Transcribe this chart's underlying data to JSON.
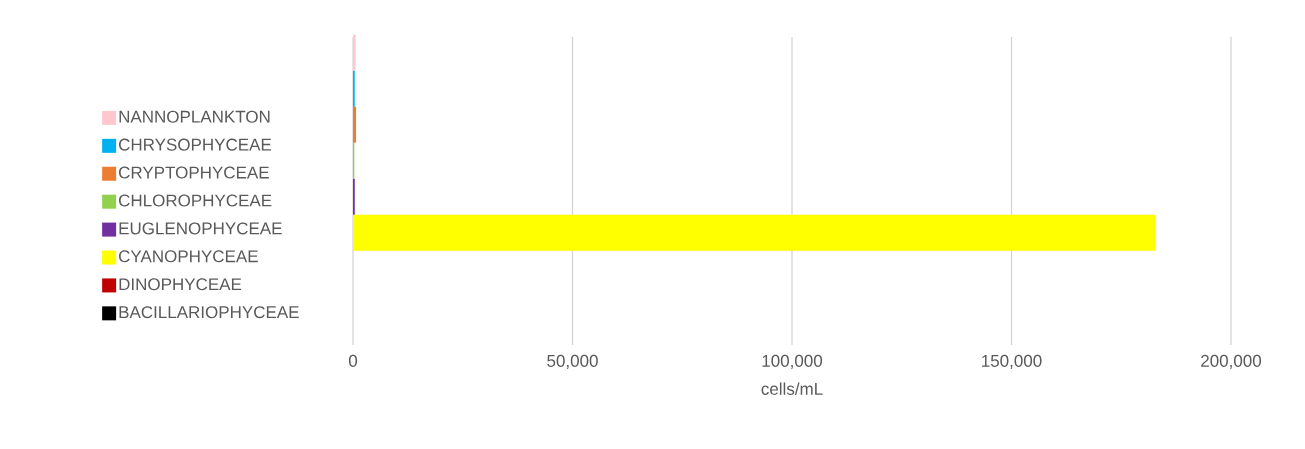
{
  "chart_data": {
    "type": "bar",
    "orientation": "horizontal",
    "categories": [
      null
    ],
    "series": [
      {
        "name": "BACILLARIOPHYCEAE",
        "color": "#000000",
        "values": [
          0
        ]
      },
      {
        "name": "DINOPHYCEAE",
        "color": "#c00000",
        "values": [
          0
        ]
      },
      {
        "name": "CYANOPHYCEAE",
        "color": "#ffff00",
        "values": [
          182700
        ]
      },
      {
        "name": "EUGLENOPHYCEAE",
        "color": "#7030a0",
        "values": [
          400
        ]
      },
      {
        "name": "CHLOROPHYCEAE",
        "color": "#92d050",
        "values": [
          300
        ]
      },
      {
        "name": "CRYPTOPHYCEAE",
        "color": "#ed7d31",
        "values": [
          700
        ]
      },
      {
        "name": "CHRYSOPHYCEAE",
        "color": "#00b0f0",
        "values": [
          400
        ]
      },
      {
        "name": "NANNOPLANKTON",
        "color": "#ffc7ce",
        "values": [
          600
        ]
      }
    ],
    "xlim": [
      0,
      200000
    ],
    "xticks": [
      0,
      {
        "value": 50000,
        "label": "50,000"
      },
      {
        "value": 100000,
        "label": "100,000"
      },
      {
        "value": 150000,
        "label": "150,000"
      },
      {
        "value": 200000,
        "label": "200,000"
      }
    ],
    "xlabel": "cells/mL",
    "grid": "x",
    "legend": "left"
  }
}
